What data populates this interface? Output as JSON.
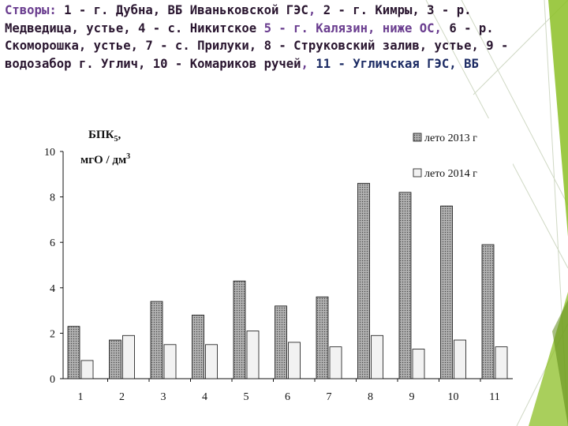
{
  "heading": {
    "p1": "Створы: ",
    "p2": "1 - г. Дубна, ВБ Иваньковской ГЭС",
    "p3": ", ",
    "p4": "2 - г. Кимры, 3 - р. Медведица, устье, 4 - с. Никитское",
    "p5": " 5 - г. Калязин, ниже ОС, ",
    "p6": "6 - р. Скоморошка, устье, 7 - с. Прилуки, 8 - Струковский залив, устье, 9 - водозабор г. Углич, 10 - Комариков ручей",
    "p7": ", ",
    "p8": "11 - Угличская ГЭС, ВБ"
  },
  "chart_data": {
    "type": "bar",
    "categories": [
      "1",
      "2",
      "3",
      "4",
      "5",
      "6",
      "7",
      "8",
      "9",
      "10",
      "11"
    ],
    "series": [
      {
        "name": "лето 2013 г",
        "values": [
          2.3,
          1.7,
          3.4,
          2.8,
          4.3,
          3.2,
          3.6,
          8.6,
          8.2,
          7.6,
          5.9
        ]
      },
      {
        "name": "лето 2014 г",
        "values": [
          0.8,
          1.9,
          1.5,
          1.5,
          2.1,
          1.6,
          1.4,
          1.9,
          1.3,
          1.7,
          1.4
        ]
      }
    ],
    "ylabel_main": "БПК",
    "ylabel_sub": "5",
    "ylabel_comma": ",",
    "ylabel_unit_main": "мгО / дм",
    "ylabel_unit_sup": "3",
    "ylim": [
      0,
      10
    ],
    "yticks": [
      "0",
      "2",
      "4",
      "6",
      "8",
      "10"
    ],
    "grid": false,
    "legend_position": "top-right",
    "colors": {
      "s2013": "#9a9a9a",
      "s2014": "#f2f2f2",
      "outline": "#111111"
    }
  },
  "decor_colors": {
    "green_main": "#8cbf26",
    "green_dark": "#5f8a17",
    "line": "#c9d8b8"
  }
}
